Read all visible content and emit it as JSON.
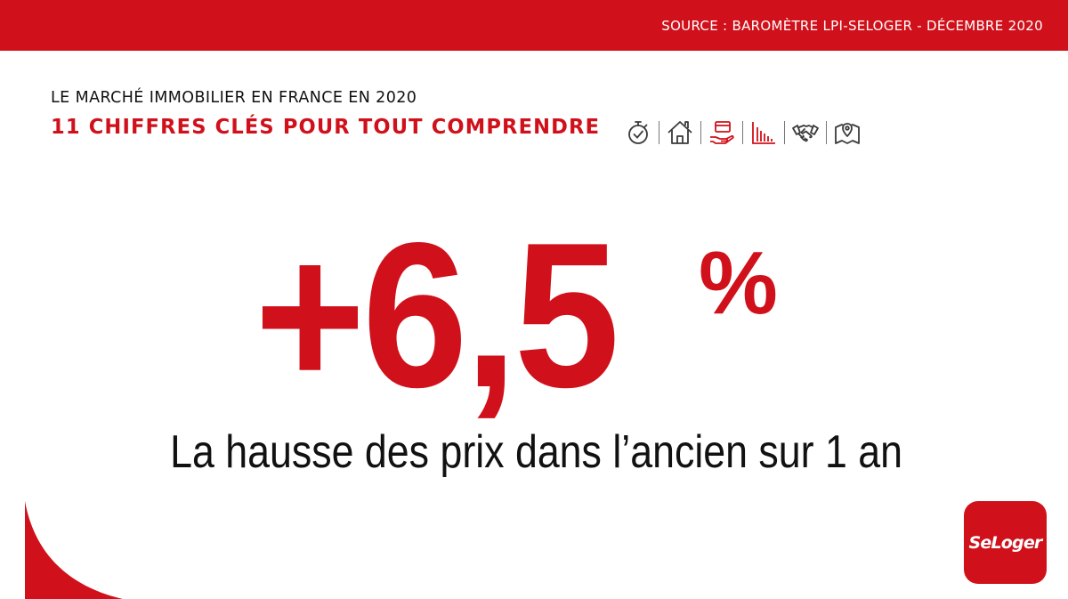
{
  "header": {
    "source": "SOURCE : BAROMÈTRE LPI-SELOGER - DÉCEMBRE 2020"
  },
  "heading": {
    "line1": "LE MARCHÉ IMMOBILIER EN FRANCE EN 2020",
    "line2": "11 CHIFFRES CLÉS POUR TOUT COMPRENDRE"
  },
  "icons": [
    {
      "name": "stopwatch-icon",
      "active": false
    },
    {
      "name": "house-icon",
      "active": false
    },
    {
      "name": "wallet-hand-icon",
      "active": true
    },
    {
      "name": "bar-chart-icon",
      "active": true
    },
    {
      "name": "handshake-icon",
      "active": false
    },
    {
      "name": "map-pin-icon",
      "active": false
    }
  ],
  "stat": {
    "value": "+6,5",
    "unit": "%",
    "caption": "La hausse des prix dans l’ancien sur 1 an"
  },
  "brand": {
    "logo_text": "SeLoger"
  },
  "colors": {
    "accent": "#d0111b",
    "text": "#111111",
    "icon_inactive": "#3a3a3a"
  }
}
